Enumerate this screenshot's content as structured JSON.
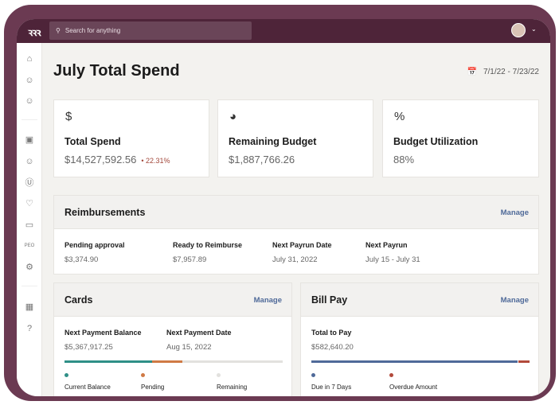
{
  "search": {
    "placeholder": "Search for anything"
  },
  "page": {
    "title": "July Total Spend",
    "date_range": "7/1/22 - 7/23/22"
  },
  "stats": [
    {
      "icon": "dollar-icon",
      "label": "Total Spend",
      "value": "$14,527,592.56",
      "change": "22.31%",
      "change_color": "#a2473a"
    },
    {
      "icon": "pie-chart-icon",
      "label": "Remaining Budget",
      "value": "$1,887,766.26"
    },
    {
      "icon": "percent-icon",
      "label": "Budget Utilization",
      "value": "88%"
    }
  ],
  "reimbursements": {
    "title": "Reimbursements",
    "manage": "Manage",
    "fields": [
      {
        "label": "Pending approval",
        "value": "$3,374.90"
      },
      {
        "label": "Ready to Reimburse",
        "value": "$7,957.89"
      },
      {
        "label": "Next Payrun Date",
        "value": "July 31, 2022"
      },
      {
        "label": "Next Payrun",
        "value": "July 15 - July 31"
      }
    ]
  },
  "cards": {
    "title": "Cards",
    "manage": "Manage",
    "fields": [
      {
        "label": "Next Payment Balance",
        "value": "$5,367,917.25"
      },
      {
        "label": "Next Payment Date",
        "value": "Aug 15, 2022"
      }
    ],
    "bar_percent": {
      "current_balance": 40,
      "pending": 14
    },
    "legend": [
      {
        "label": "Current Balance",
        "color": "#2f8f87"
      },
      {
        "label": "Pending",
        "color": "#d07a45"
      },
      {
        "label": "Remaining",
        "color": "#e2e1de"
      }
    ]
  },
  "billpay": {
    "title": "Bill Pay",
    "manage": "Manage",
    "fields": [
      {
        "label": "Total to Pay",
        "value": "$582,640.20"
      }
    ],
    "bar_percent": {
      "due_in_7_days": 95,
      "overdue": 5
    },
    "legend": [
      {
        "label": "Due in 7 Days",
        "color": "#4f6a99"
      },
      {
        "label": "Overdue Amount",
        "color": "#b24a3b"
      }
    ]
  },
  "colors": {
    "topbar": "#4e2439",
    "accent_link": "#4f6a99"
  }
}
